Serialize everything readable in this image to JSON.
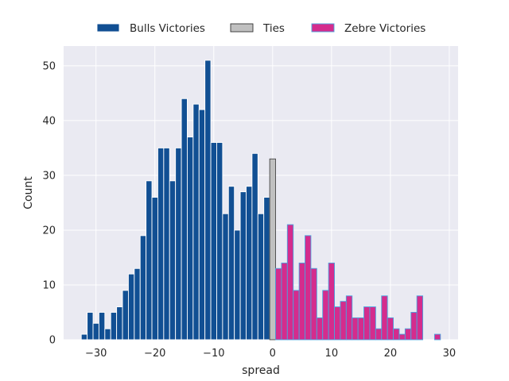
{
  "chart_data": {
    "type": "bar",
    "xlabel": "spread",
    "ylabel": "Count",
    "xlim": [
      -35.5,
      31.5
    ],
    "ylim": [
      0,
      53.6
    ],
    "xticks": [
      -30,
      -20,
      -10,
      0,
      10,
      20,
      30
    ],
    "xtick_labels": [
      "−30",
      "−20",
      "−10",
      "0",
      "10",
      "20",
      "30"
    ],
    "yticks": [
      0,
      10,
      20,
      30,
      40,
      50
    ],
    "ytick_labels": [
      "0",
      "10",
      "20",
      "30",
      "40",
      "50"
    ],
    "grid": true,
    "legend_position": "top-center",
    "bin_width": 1,
    "series": [
      {
        "name": "Bulls Victories",
        "color": "#114f93",
        "edge_color": "#ffffff",
        "x": [
          -32,
          -31,
          -30,
          -29,
          -28,
          -27,
          -26,
          -25,
          -24,
          -23,
          -22,
          -21,
          -20,
          -19,
          -18,
          -17,
          -16,
          -15,
          -14,
          -13,
          -12,
          -11,
          -10,
          -9,
          -8,
          -7,
          -6,
          -5,
          -4,
          -3,
          -2,
          -1
        ],
        "values": [
          1,
          5,
          3,
          5,
          2,
          5,
          6,
          9,
          12,
          13,
          19,
          29,
          26,
          35,
          35,
          29,
          35,
          44,
          37,
          43,
          42,
          51,
          36,
          36,
          23,
          28,
          20,
          27,
          28,
          34,
          23,
          26
        ]
      },
      {
        "name": "Ties",
        "color": "#c0c0c0",
        "edge_color": "#333333",
        "x": [
          0
        ],
        "values": [
          33
        ]
      },
      {
        "name": "Zebre Victories",
        "color": "#d42c8d",
        "edge_color": "#4aa3df",
        "x": [
          1,
          2,
          3,
          4,
          5,
          6,
          7,
          8,
          9,
          10,
          11,
          12,
          13,
          14,
          15,
          16,
          17,
          18,
          19,
          20,
          21,
          22,
          23,
          24,
          25,
          26,
          27,
          28
        ],
        "values": [
          13,
          14,
          21,
          9,
          14,
          19,
          13,
          4,
          9,
          14,
          6,
          7,
          8,
          4,
          4,
          6,
          6,
          2,
          8,
          4,
          2,
          1,
          2,
          5,
          8,
          0,
          0,
          1
        ]
      }
    ]
  }
}
